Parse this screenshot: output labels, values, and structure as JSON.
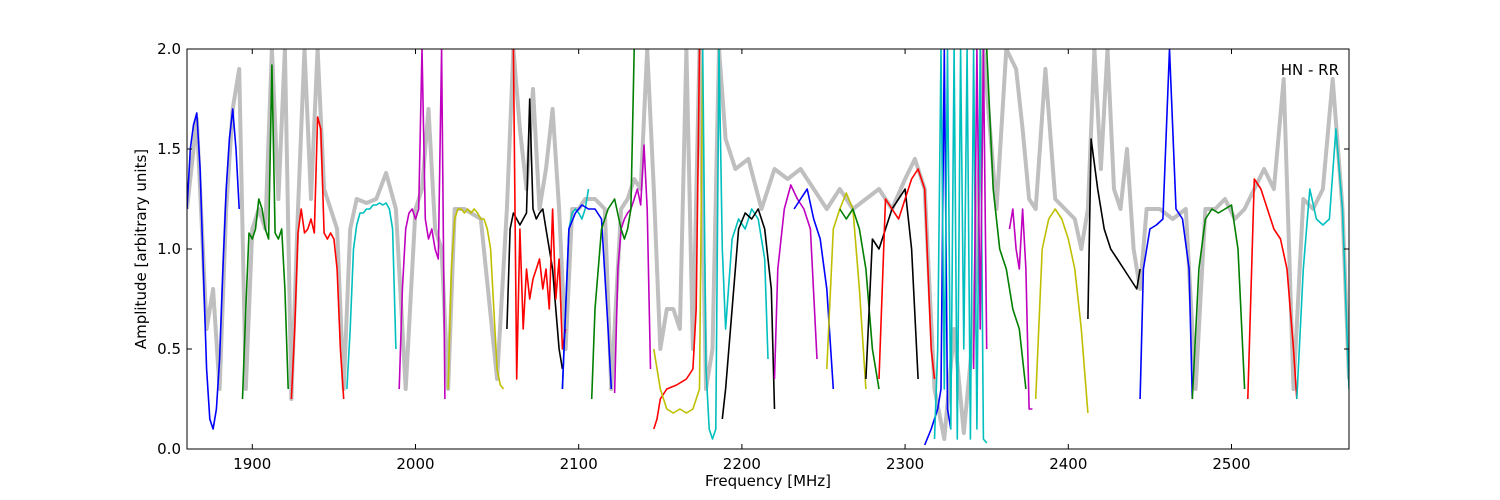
{
  "chart_data": {
    "type": "line",
    "xlabel": "Frequency [MHz]",
    "ylabel": "Amplitude [arbitrary units]",
    "annotation": "HN - RR",
    "xlim": [
      1860,
      2572
    ],
    "ylim": [
      0.0,
      2.0
    ],
    "xticks": [
      1900,
      2000,
      2100,
      2200,
      2300,
      2400,
      2500
    ],
    "yticks": [
      0.0,
      0.5,
      1.0,
      1.5,
      2.0
    ],
    "xtick_labels": [
      "1900",
      "2000",
      "2100",
      "2200",
      "2300",
      "2400",
      "2500"
    ],
    "ytick_labels": [
      "0.0",
      "0.5",
      "1.0",
      "1.5",
      "2.0"
    ],
    "grid": false,
    "envelope_color": "#bfbfbf",
    "envelope": {
      "x": [
        1860,
        1866,
        1872,
        1876,
        1880,
        1884,
        1888,
        1892,
        1896,
        1900,
        1904,
        1908,
        1912,
        1916,
        1920,
        1924,
        1928,
        1932,
        1936,
        1940,
        1944,
        1948,
        1952,
        1956,
        1960,
        1964,
        1970,
        1976,
        1982,
        1988,
        1994,
        2000,
        2004,
        2008,
        2012,
        2016,
        2020,
        2024,
        2030,
        2040,
        2050,
        2056,
        2060,
        2064,
        2068,
        2072,
        2076,
        2080,
        2084,
        2088,
        2092,
        2096,
        2100,
        2104,
        2110,
        2116,
        2120,
        2126,
        2130,
        2134,
        2138,
        2142,
        2146,
        2150,
        2154,
        2158,
        2162,
        2166,
        2170,
        2174,
        2178,
        2182,
        2186,
        2190,
        2196,
        2204,
        2212,
        2220,
        2228,
        2236,
        2244,
        2252,
        2260,
        2268,
        2276,
        2284,
        2292,
        2300,
        2306,
        2312,
        2318,
        2324,
        2330,
        2336,
        2342,
        2348,
        2356,
        2362,
        2368,
        2372,
        2376,
        2380,
        2386,
        2392,
        2398,
        2404,
        2408,
        2412,
        2416,
        2420,
        2424,
        2428,
        2432,
        2436,
        2440,
        2444,
        2448,
        2456,
        2464,
        2472,
        2478,
        2484,
        2490,
        2496,
        2502,
        2508,
        2514,
        2520,
        2526,
        2532,
        2538,
        2544,
        2550,
        2556,
        2562,
        2568,
        2572
      ],
      "y": [
        1.2,
        1.65,
        0.6,
        0.8,
        0.3,
        1.2,
        1.7,
        1.9,
        0.3,
        1.1,
        1.2,
        1.1,
        2.0,
        1.25,
        2.0,
        0.25,
        1.2,
        2.0,
        1.25,
        2.0,
        1.3,
        1.2,
        1.1,
        0.3,
        1.1,
        1.25,
        1.23,
        1.25,
        1.38,
        1.2,
        0.3,
        1.2,
        1.3,
        1.7,
        1.1,
        1.0,
        0.3,
        1.2,
        1.2,
        1.15,
        0.35,
        1.2,
        2.0,
        1.6,
        1.3,
        1.8,
        1.2,
        1.4,
        1.7,
        1.2,
        0.5,
        1.2,
        1.2,
        1.25,
        1.25,
        1.2,
        0.3,
        1.2,
        1.25,
        1.35,
        1.3,
        2.0,
        1.3,
        0.5,
        0.7,
        0.7,
        0.6,
        2.0,
        0.5,
        2.0,
        0.3,
        0.5,
        2.0,
        1.55,
        1.4,
        1.45,
        1.2,
        1.4,
        1.35,
        1.4,
        1.3,
        1.2,
        1.3,
        1.2,
        1.25,
        1.3,
        1.2,
        1.35,
        1.45,
        1.3,
        0.3,
        0.05,
        0.6,
        0.08,
        0.6,
        2.0,
        1.2,
        2.0,
        1.9,
        1.6,
        1.25,
        1.2,
        1.9,
        1.25,
        1.2,
        1.15,
        1.0,
        1.2,
        2.0,
        1.4,
        2.0,
        1.3,
        1.2,
        1.5,
        1.0,
        0.8,
        1.2,
        1.2,
        1.15,
        1.2,
        0.3,
        1.2,
        1.2,
        1.25,
        1.15,
        1.2,
        1.3,
        1.4,
        1.3,
        1.85,
        0.3,
        1.25,
        1.2,
        1.3,
        1.85,
        1.2,
        0.35
      ]
    },
    "series": [
      {
        "color": "#0000ff",
        "x": [
          1860,
          1862,
          1864,
          1866,
          1868,
          1870,
          1872,
          1874,
          1876,
          1878,
          1880,
          1882,
          1884,
          1886,
          1888,
          1890,
          1892
        ],
        "y": [
          1.2,
          1.5,
          1.62,
          1.68,
          1.4,
          0.9,
          0.4,
          0.15,
          0.1,
          0.2,
          0.45,
          0.9,
          1.3,
          1.55,
          1.7,
          1.5,
          1.2
        ]
      },
      {
        "color": "#007f00",
        "x": [
          1894,
          1896,
          1898,
          1900,
          1902,
          1904,
          1906,
          1908,
          1910,
          1912,
          1914,
          1916,
          1918,
          1920,
          1922
        ],
        "y": [
          0.25,
          0.7,
          1.08,
          1.05,
          1.1,
          1.25,
          1.2,
          1.1,
          1.05,
          1.92,
          1.08,
          1.05,
          1.1,
          0.8,
          0.3
        ]
      },
      {
        "color": "#ff0000",
        "x": [
          1924,
          1926,
          1928,
          1930,
          1932,
          1934,
          1936,
          1938,
          1940,
          1942,
          1944,
          1946,
          1948,
          1950,
          1952,
          1954,
          1956
        ],
        "y": [
          0.25,
          0.6,
          1.08,
          1.2,
          1.08,
          1.1,
          1.15,
          1.08,
          1.66,
          1.6,
          1.08,
          1.05,
          1.08,
          1.05,
          0.9,
          0.5,
          0.25
        ]
      },
      {
        "color": "#00bfbf",
        "x": [
          1958,
          1960,
          1962,
          1964,
          1966,
          1968,
          1970,
          1972,
          1974,
          1976,
          1978,
          1980,
          1982,
          1984,
          1986,
          1988
        ],
        "y": [
          0.3,
          0.6,
          1.0,
          1.12,
          1.18,
          1.18,
          1.2,
          1.2,
          1.22,
          1.22,
          1.23,
          1.22,
          1.23,
          1.2,
          1.1,
          0.5
        ]
      },
      {
        "color": "#bf00bf",
        "x": [
          1990,
          1992,
          1994,
          1996,
          1998,
          2000,
          2002,
          2004,
          2006,
          2008,
          2010,
          2012,
          2014,
          2016,
          2018
        ],
        "y": [
          0.3,
          0.8,
          1.1,
          1.18,
          1.2,
          1.15,
          1.2,
          2.0,
          1.15,
          1.05,
          1.1,
          1.0,
          0.95,
          2.0,
          0.25
        ]
      },
      {
        "color": "#bfbf00",
        "x": [
          2020,
          2022,
          2024,
          2026,
          2028,
          2030,
          2032,
          2034,
          2036,
          2038,
          2040,
          2042,
          2044,
          2046,
          2048,
          2050,
          2052,
          2054
        ],
        "y": [
          0.3,
          0.9,
          1.15,
          1.2,
          1.2,
          1.18,
          1.2,
          1.18,
          1.2,
          1.18,
          1.15,
          1.15,
          1.1,
          1.0,
          0.7,
          0.4,
          0.32,
          0.3
        ]
      },
      {
        "color": "#000000",
        "x": [
          2056,
          2058,
          2060,
          2062,
          2064,
          2066,
          2068,
          2070,
          2072,
          2074,
          2076,
          2078,
          2080,
          2082,
          2084,
          2086,
          2088,
          2090
        ],
        "y": [
          0.6,
          1.1,
          1.18,
          1.15,
          1.12,
          1.15,
          1.18,
          1.75,
          1.2,
          1.15,
          1.18,
          1.2,
          1.1,
          1.0,
          0.9,
          0.7,
          0.5,
          0.4
        ]
      },
      {
        "color": "#ff0000",
        "x": [
          2060,
          2062,
          2064,
          2066,
          2068,
          2070,
          2072,
          2074,
          2076,
          2078,
          2080,
          2082,
          2084,
          2086,
          2088,
          2090,
          2092
        ],
        "y": [
          2.0,
          0.35,
          1.1,
          0.6,
          0.9,
          0.75,
          0.85,
          0.9,
          0.95,
          0.8,
          0.9,
          0.7,
          1.2,
          0.75,
          0.95,
          0.5,
          0.6
        ]
      },
      {
        "color": "#00bfbf",
        "x": [
          2090,
          2092,
          2094,
          2096,
          2098,
          2100,
          2102,
          2104,
          2106
        ],
        "y": [
          0.3,
          0.7,
          1.1,
          1.18,
          1.2,
          1.18,
          1.15,
          1.2,
          1.3
        ]
      },
      {
        "color": "#0000ff",
        "x": [
          2090,
          2094,
          2098,
          2102,
          2106,
          2110,
          2114,
          2118,
          2120
        ],
        "y": [
          0.3,
          1.1,
          1.18,
          1.22,
          1.2,
          1.2,
          1.15,
          0.6,
          0.3
        ]
      },
      {
        "color": "#bf00bf",
        "x": [
          2122,
          2124,
          2126,
          2128,
          2130,
          2132,
          2134,
          2136,
          2138,
          2140,
          2142,
          2144
        ],
        "y": [
          0.28,
          0.9,
          1.1,
          1.15,
          1.18,
          1.2,
          1.25,
          1.3,
          1.22,
          1.52,
          1.2,
          0.4
        ]
      },
      {
        "color": "#007f00",
        "x": [
          2108,
          2110,
          2114,
          2118,
          2122,
          2126,
          2128,
          2130,
          2132,
          2134
        ],
        "y": [
          0.25,
          0.7,
          1.1,
          1.2,
          1.25,
          1.1,
          1.05,
          1.1,
          1.2,
          2.0
        ]
      },
      {
        "color": "#ff0000",
        "x": [
          2146,
          2148,
          2150,
          2154,
          2160,
          2166,
          2170,
          2172,
          2174
        ],
        "y": [
          0.1,
          0.15,
          0.25,
          0.3,
          0.32,
          0.35,
          0.4,
          0.7,
          2.0
        ]
      },
      {
        "color": "#bfbf00",
        "x": [
          2146,
          2150,
          2154,
          2158,
          2162,
          2166,
          2170,
          2174,
          2176
        ],
        "y": [
          0.5,
          0.3,
          0.2,
          0.18,
          0.2,
          0.18,
          0.2,
          0.3,
          2.0
        ]
      },
      {
        "color": "#00bfbf",
        "x": [
          2176,
          2178,
          2180,
          2182,
          2184,
          2186,
          2188,
          2190,
          2194,
          2198,
          2202,
          2206,
          2210,
          2214,
          2216
        ],
        "y": [
          2.0,
          0.4,
          0.1,
          0.05,
          0.1,
          2.0,
          1.0,
          0.6,
          1.05,
          1.15,
          1.1,
          1.2,
          1.15,
          0.95,
          0.45
        ]
      },
      {
        "color": "#000000",
        "x": [
          2188,
          2190,
          2194,
          2198,
          2202,
          2206,
          2210,
          2214,
          2218,
          2220
        ],
        "y": [
          0.15,
          0.3,
          0.7,
          1.1,
          1.18,
          1.15,
          1.2,
          1.1,
          0.8,
          0.2
        ]
      },
      {
        "color": "#bf00bf",
        "x": [
          2220,
          2222,
          2226,
          2230,
          2234,
          2238,
          2242,
          2246
        ],
        "y": [
          0.35,
          0.9,
          1.2,
          1.32,
          1.25,
          1.2,
          1.1,
          0.45
        ]
      },
      {
        "color": "#0000ff",
        "x": [
          2232,
          2236,
          2240,
          2244,
          2248,
          2252,
          2256
        ],
        "y": [
          1.2,
          1.25,
          1.3,
          1.15,
          1.05,
          0.8,
          0.3
        ]
      },
      {
        "color": "#bfbf00",
        "x": [
          2252,
          2256,
          2260,
          2264,
          2268,
          2272,
          2276
        ],
        "y": [
          0.4,
          1.1,
          1.2,
          1.28,
          1.2,
          0.8,
          0.3
        ]
      },
      {
        "color": "#007f00",
        "x": [
          2260,
          2264,
          2268,
          2272,
          2276,
          2280,
          2284
        ],
        "y": [
          1.2,
          1.15,
          1.2,
          1.1,
          0.9,
          0.5,
          0.3
        ]
      },
      {
        "color": "#000000",
        "x": [
          2276,
          2280,
          2284,
          2288,
          2292,
          2296,
          2300,
          2304,
          2308
        ],
        "y": [
          0.35,
          1.05,
          1.0,
          1.1,
          1.2,
          1.25,
          1.3,
          1.0,
          0.35
        ]
      },
      {
        "color": "#ff0000",
        "x": [
          2284,
          2288,
          2292,
          2296,
          2300,
          2304,
          2308,
          2312,
          2316,
          2318
        ],
        "y": [
          0.35,
          1.25,
          1.2,
          1.15,
          1.25,
          1.35,
          1.4,
          1.3,
          0.5,
          0.35
        ]
      },
      {
        "color": "#0000ff",
        "x": [
          2312,
          2316,
          2320,
          2322,
          2324,
          2326,
          2328
        ],
        "y": [
          0.02,
          0.1,
          0.2,
          0.3,
          2.0,
          0.2,
          0.1
        ]
      },
      {
        "color": "#00bfbf",
        "x": [
          2318,
          2320,
          2322,
          2324,
          2326,
          2328,
          2330,
          2332,
          2334,
          2336,
          2338,
          2340,
          2342,
          2344,
          2346,
          2348,
          2350
        ],
        "y": [
          0.05,
          0.5,
          2.0,
          0.3,
          2.0,
          0.1,
          2.0,
          0.05,
          2.0,
          0.5,
          2.0,
          0.05,
          2.0,
          0.1,
          2.0,
          0.05,
          0.03
        ]
      },
      {
        "color": "#bf00bf",
        "x": [
          2342,
          2344,
          2346,
          2348,
          2350
        ],
        "y": [
          0.4,
          2.0,
          0.6,
          2.0,
          0.5
        ]
      },
      {
        "color": "#007f00",
        "x": [
          2350,
          2354,
          2358,
          2362,
          2366,
          2370,
          2374
        ],
        "y": [
          2.0,
          1.3,
          1.0,
          0.9,
          0.7,
          0.6,
          0.3
        ]
      },
      {
        "color": "#bf00bf",
        "x": [
          2364,
          2366,
          2368,
          2370,
          2372,
          2374,
          2376,
          2378
        ],
        "y": [
          1.1,
          1.2,
          1.0,
          0.9,
          1.2,
          0.9,
          0.2,
          0.2
        ]
      },
      {
        "color": "#bfbf00",
        "x": [
          2380,
          2384,
          2388,
          2392,
          2396,
          2400,
          2404,
          2408,
          2412
        ],
        "y": [
          0.25,
          1.0,
          1.15,
          1.2,
          1.15,
          1.05,
          0.9,
          0.6,
          0.18
        ]
      },
      {
        "color": "#000000",
        "x": [
          2412,
          2414,
          2418,
          2422,
          2426,
          2430,
          2434,
          2438,
          2442,
          2444
        ],
        "y": [
          0.65,
          1.55,
          1.3,
          1.1,
          1.0,
          0.95,
          0.9,
          0.85,
          0.8,
          0.9
        ]
      },
      {
        "color": "#0000ff",
        "x": [
          2444,
          2446,
          2450,
          2454,
          2458,
          2462,
          2466,
          2470,
          2474,
          2476
        ],
        "y": [
          0.25,
          0.9,
          1.1,
          1.12,
          1.15,
          2.0,
          1.2,
          1.15,
          0.9,
          0.25
        ]
      },
      {
        "color": "#007f00",
        "x": [
          2476,
          2480,
          2484,
          2488,
          2492,
          2496,
          2500,
          2504,
          2508
        ],
        "y": [
          0.25,
          0.9,
          1.15,
          1.2,
          1.18,
          1.2,
          1.22,
          1.0,
          0.3
        ]
      },
      {
        "color": "#ff0000",
        "x": [
          2510,
          2514,
          2518,
          2522,
          2526,
          2530,
          2534,
          2538,
          2540
        ],
        "y": [
          0.25,
          1.35,
          1.3,
          1.2,
          1.1,
          1.05,
          0.9,
          0.5,
          0.25
        ]
      },
      {
        "color": "#00bfbf",
        "x": [
          2540,
          2544,
          2548,
          2552,
          2556,
          2560,
          2564,
          2568,
          2572
        ],
        "y": [
          0.25,
          0.9,
          1.3,
          1.15,
          1.12,
          1.15,
          1.6,
          1.2,
          0.3
        ]
      }
    ]
  }
}
